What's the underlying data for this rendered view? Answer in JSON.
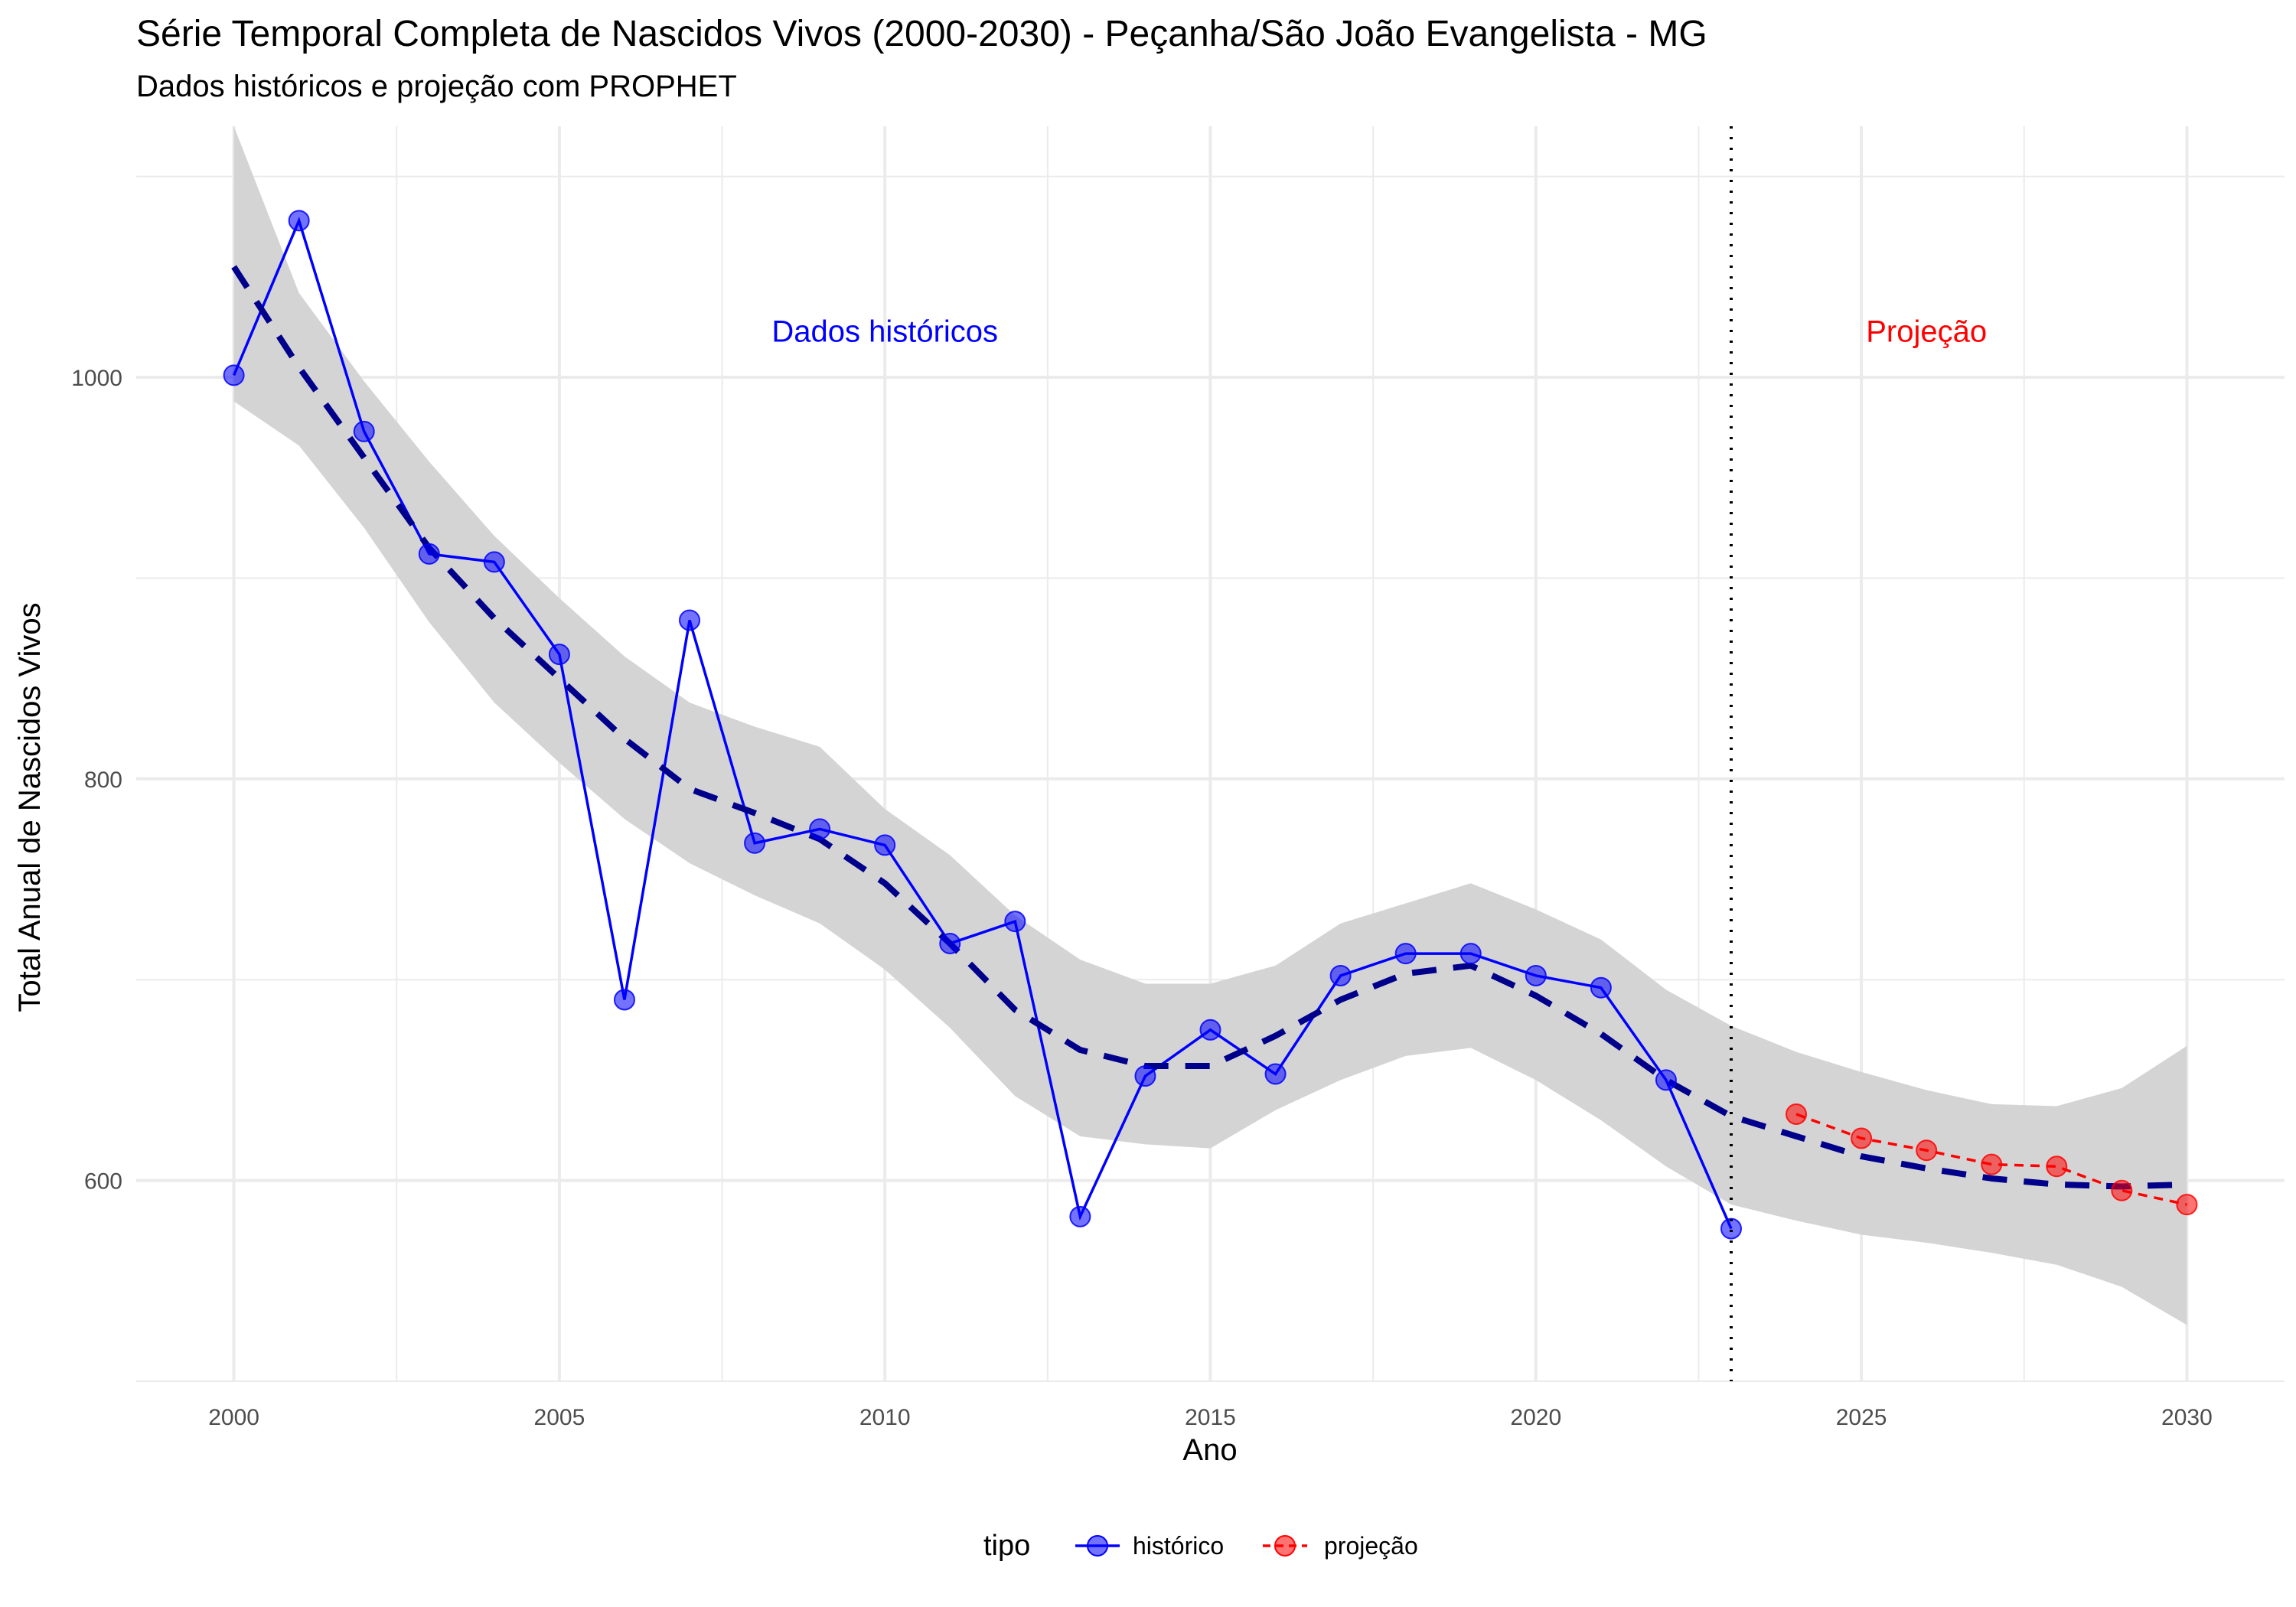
{
  "chart_data": {
    "type": "line",
    "title": "Série Temporal Completa de Nascidos Vivos (2000-2030) -  Peçanha/São João Evangelista - MG",
    "subtitle": "Dados históricos e projeção com PROPHET",
    "xlabel": "Ano",
    "ylabel": "Total Anual de Nascidos Vivos",
    "xlim": [
      1998.5,
      2031.5
    ],
    "ylim": [
      500,
      1125
    ],
    "x_ticks": [
      2000,
      2005,
      2010,
      2015,
      2020,
      2025,
      2030
    ],
    "x_tick_labels": [
      "2000",
      "2005",
      "2010",
      "2015",
      "2020",
      "2025",
      "2030"
    ],
    "y_ticks": [
      600,
      800,
      1000
    ],
    "y_tick_labels": [
      "600",
      "800",
      "1000"
    ],
    "grid": true,
    "legend_position": "bottom",
    "legend_title": "tipo",
    "series": [
      {
        "name": "histórico",
        "color": "#0000ff",
        "style": "solid-with-points",
        "x": [
          2000,
          2001,
          2002,
          2003,
          2004,
          2005,
          2006,
          2007,
          2008,
          2009,
          2010,
          2011,
          2012,
          2013,
          2014,
          2015,
          2016,
          2017,
          2018,
          2019,
          2020,
          2021,
          2022,
          2023
        ],
        "values": [
          1001,
          1078,
          973,
          912,
          908,
          862,
          690,
          879,
          768,
          775,
          767,
          718,
          729,
          582,
          652,
          675,
          653,
          702,
          713,
          713,
          702,
          696,
          650,
          576
        ]
      },
      {
        "name": "projeção",
        "color": "#ff0000",
        "style": "dashed-with-points",
        "x": [
          2024,
          2025,
          2026,
          2027,
          2028,
          2029,
          2030
        ],
        "values": [
          633,
          621,
          615,
          608,
          607,
          595,
          588
        ]
      }
    ],
    "trend": {
      "color": "#00008b",
      "style": "dashed",
      "x": [
        2000,
        2001,
        2002,
        2003,
        2004,
        2005,
        2006,
        2007,
        2008,
        2009,
        2010,
        2011,
        2012,
        2013,
        2014,
        2015,
        2016,
        2017,
        2018,
        2019,
        2020,
        2021,
        2022,
        2023,
        2024,
        2025,
        2026,
        2027,
        2028,
        2029,
        2030
      ],
      "values": [
        1055,
        1005,
        960,
        915,
        880,
        850,
        820,
        795,
        783,
        770,
        748,
        718,
        685,
        665,
        657,
        657,
        672,
        690,
        703,
        707,
        692,
        673,
        650,
        632,
        622,
        612,
        606,
        601,
        598,
        597,
        598
      ],
      "upper": [
        1125,
        1042,
        998,
        958,
        921,
        890,
        861,
        838,
        826,
        816,
        785,
        762,
        732,
        710,
        698,
        698,
        707,
        728,
        738,
        748,
        735,
        720,
        695,
        677,
        664,
        654,
        645,
        638,
        637,
        646,
        667
      ],
      "lower": [
        988,
        966,
        925,
        878,
        838,
        808,
        780,
        758,
        742,
        728,
        705,
        676,
        642,
        622,
        618,
        616,
        635,
        650,
        662,
        666,
        650,
        630,
        607,
        588,
        580,
        573,
        569,
        564,
        558,
        547,
        528
      ],
      "band_color": "#d4d4d4"
    },
    "vline": {
      "x": 2023,
      "style": "dotted",
      "color": "#000000"
    },
    "annotations": [
      {
        "text": "Dados históricos",
        "x": 2010,
        "y": 1023,
        "color": "#0000ff"
      },
      {
        "text": "Projeção",
        "x": 2026,
        "y": 1023,
        "color": "#ff0000"
      }
    ]
  }
}
